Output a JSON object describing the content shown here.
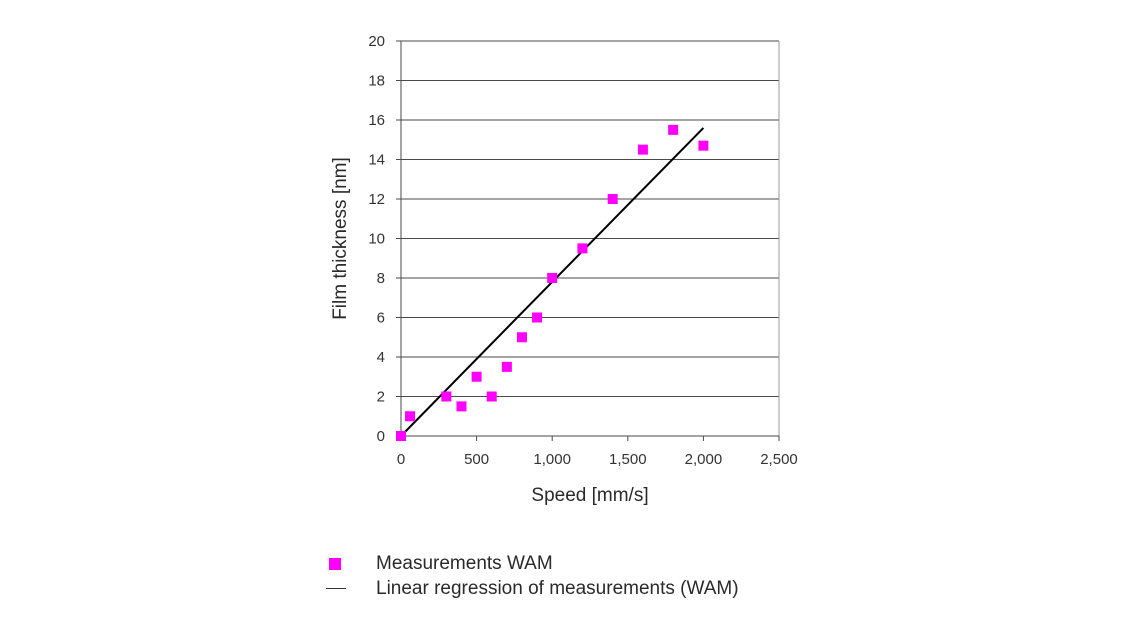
{
  "chart_data": {
    "type": "scatter",
    "xlabel": "Speed [mm/s]",
    "ylabel": "Film thickness [nm]",
    "xlim": [
      0,
      2500
    ],
    "ylim": [
      0,
      20
    ],
    "x_ticks": [
      "0",
      "500",
      "1,000",
      "1,500",
      "2,000",
      "2,500"
    ],
    "y_ticks": [
      "0",
      "2",
      "4",
      "6",
      "8",
      "10",
      "12",
      "14",
      "16",
      "18",
      "20"
    ],
    "grid": "horizontal",
    "legend_position": "bottom-left",
    "series": [
      {
        "name": "Measurements WAM",
        "kind": "scatter",
        "color": "#ff00ff",
        "x": [
          0,
          60,
          300,
          400,
          500,
          600,
          700,
          800,
          900,
          1000,
          1200,
          1400,
          1600,
          1800,
          2000
        ],
        "y": [
          0,
          1,
          2,
          1.5,
          3,
          2,
          3.5,
          5,
          6,
          8,
          9.5,
          12,
          14.5,
          15.5,
          14.7
        ]
      },
      {
        "name": "Linear regression of measurements (WAM)",
        "kind": "line",
        "color": "#000000",
        "x": [
          0,
          2000
        ],
        "y": [
          0,
          15.6
        ]
      }
    ]
  }
}
